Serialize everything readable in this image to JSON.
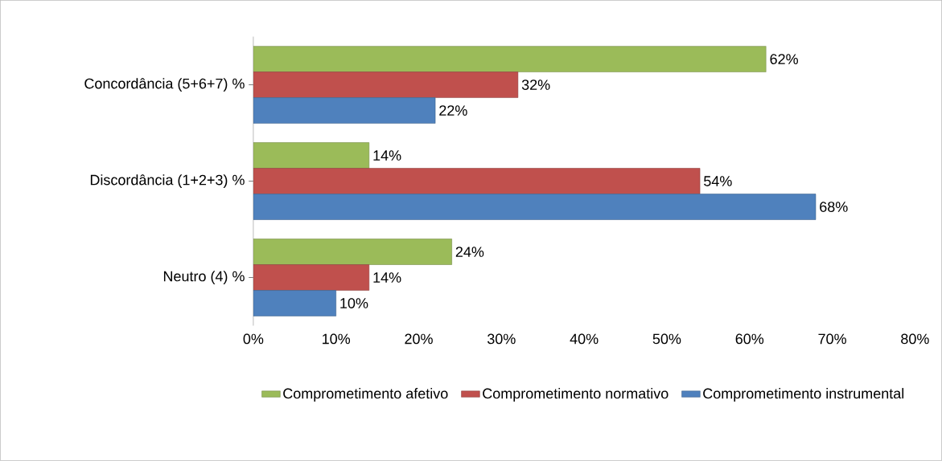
{
  "chart_data": {
    "type": "bar",
    "orientation": "horizontal",
    "categories": [
      "Concordância (5+6+7) %",
      "Discordância (1+2+3) %",
      "Neutro (4) %"
    ],
    "series": [
      {
        "name": "Comprometimento afetivo",
        "color": "#9bbb59",
        "values": [
          62,
          14,
          24
        ],
        "value_labels": [
          "62%",
          "14%",
          "24%"
        ]
      },
      {
        "name": "Comprometimento normativo",
        "color": "#c0504d",
        "values": [
          32,
          54,
          14
        ],
        "value_labels": [
          "32%",
          "54%",
          "14%"
        ]
      },
      {
        "name": "Comprometimento instrumental",
        "color": "#4f81bd",
        "values": [
          22,
          68,
          10
        ],
        "value_labels": [
          "22%",
          "68%",
          "10%"
        ]
      }
    ],
    "xlim": [
      0,
      80
    ],
    "xticks": [
      {
        "value": 0,
        "label": "0%"
      },
      {
        "value": 10,
        "label": "10%"
      },
      {
        "value": 20,
        "label": "20%"
      },
      {
        "value": 30,
        "label": "30%"
      },
      {
        "value": 40,
        "label": "40%"
      },
      {
        "value": 50,
        "label": "50%"
      },
      {
        "value": 60,
        "label": "60%"
      },
      {
        "value": 70,
        "label": "70%"
      },
      {
        "value": 80,
        "label": "80%"
      }
    ],
    "grid": false,
    "legend": "bottom"
  }
}
